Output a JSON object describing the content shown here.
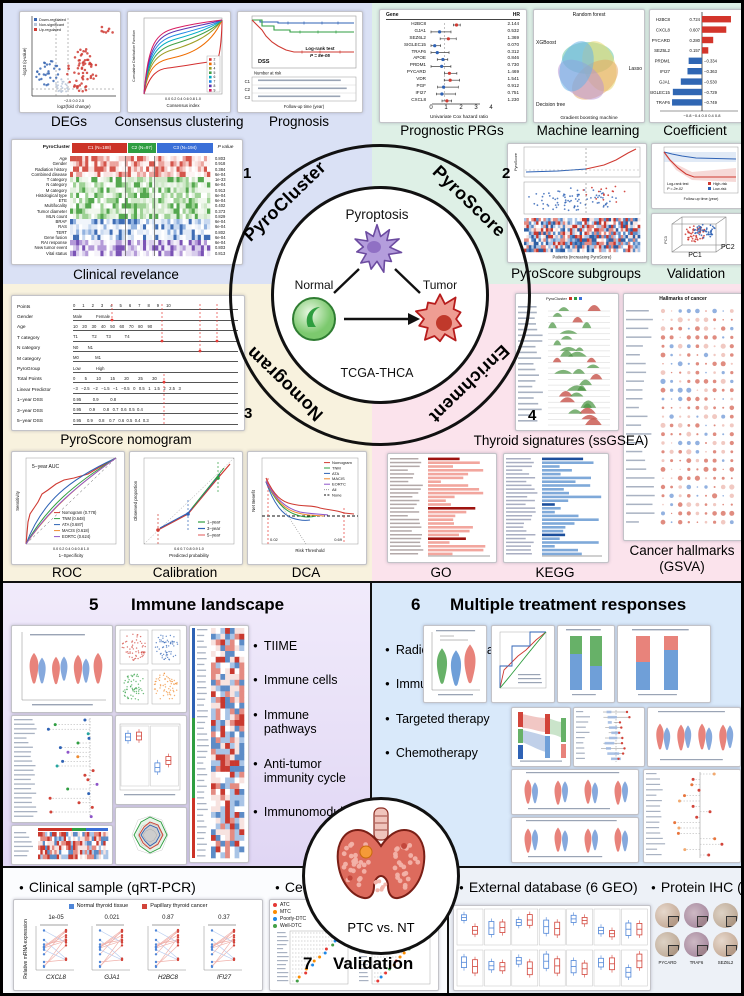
{
  "ring": {
    "s1": "PyroCluster",
    "s2": "PyroScore",
    "s3": "Nomogram",
    "s4": "Enrichment",
    "n1": "1",
    "n2": "2",
    "n3": "3",
    "n4": "4"
  },
  "center": {
    "top": "Pyroptosis",
    "left": "Normal",
    "right": "Tumor",
    "cohort": "TCGA-THCA"
  },
  "s1": {
    "cap_a": "DEGs",
    "cap_b": "Consensus clustering",
    "cap_c": "Prognosis",
    "cap_d": "Clinical revelance",
    "volcano": {
      "legend": [
        "Down-regulated",
        "Non-significant",
        "Up-regulated"
      ],
      "xlabel": "log2(fold change)",
      "ylabel": "-log10 (q-value)",
      "xticks": "−2.5        0.0        2.5"
    },
    "consensus": {
      "xlabel": "Consensus index",
      "ylabel": "Cumulative Distribution Function",
      "xticks": "0.0   0.2   0.4   0.6   0.8   1.0",
      "k": [
        "2",
        "3",
        "4",
        "5",
        "6",
        "7",
        "8",
        "9"
      ]
    },
    "km": {
      "endpoint": "DSS",
      "test": "Log-rank test",
      "p": "P = 8e-05",
      "risk": "Number at risk",
      "xlabel": "Follow-up time (year)",
      "groups": [
        "C1",
        "C2",
        "C3"
      ]
    },
    "clin": {
      "title_row": "PyroCluster",
      "cols": [
        "C1 (N=188)",
        "C2 (N=97)",
        "C3 (N=194)"
      ],
      "pcol": "P value",
      "rows": [
        {
          "label": "Age",
          "p": "0.803"
        },
        {
          "label": "Gender",
          "p": "0.918"
        },
        {
          "label": "Radiation history",
          "p": "0.384"
        },
        {
          "label": "Combined disease",
          "p": "6e-04"
        },
        {
          "label": "T category",
          "p": "1e-33"
        },
        {
          "label": "N category",
          "p": "6e-04"
        },
        {
          "label": "M category",
          "p": "0.913"
        },
        {
          "label": "Histological type",
          "p": "6e-04"
        },
        {
          "label": "ETE",
          "p": "6e-04"
        },
        {
          "label": "Multifocality",
          "p": "0.402"
        },
        {
          "label": "Tumor diameter",
          "p": "0.373"
        },
        {
          "label": "MLN count",
          "p": "0.829"
        },
        {
          "label": "BRAF",
          "p": "6e-04"
        },
        {
          "label": "RAS",
          "p": "6e-04"
        },
        {
          "label": "TERT",
          "p": "0.802"
        },
        {
          "label": "Gene fusion",
          "p": "6e-04"
        },
        {
          "label": "RAI response",
          "p": "6e-04"
        },
        {
          "label": "New tumor event",
          "p": "0.803"
        },
        {
          "label": "Vital status",
          "p": "0.813"
        }
      ]
    }
  },
  "s2": {
    "cap_a": "Prognostic PRGs",
    "cap_b": "Machine learning",
    "cap_c": "Coefficient",
    "cap_d": "PyroScore subgroups",
    "cap_e": "Validation",
    "forest": {
      "col_gene": "Gene",
      "col_hr": "HR",
      "xlabel": "Univariate Cox hazard ratio",
      "xticks": "0       1       2       3       4",
      "genes": [
        "H2BC8",
        "GJA1",
        "SEZ6L2",
        "SIGLEC15",
        "TRAF6",
        "APOE",
        "PRDM1",
        "PYCARD",
        "VDR",
        "PGF",
        "IFI27",
        "CXCL8"
      ],
      "hr": [
        "2.144",
        "0.532",
        "1.369",
        "0.070",
        "0.312",
        "0.846",
        "0.730",
        "1.469",
        "1.541",
        "0.912",
        "0.751",
        "1.230"
      ]
    },
    "venn": {
      "labels": [
        "Random forest",
        "XGBoost",
        "Lasso",
        "Decision tree",
        "Gradient boosting machine"
      ]
    },
    "coef": {
      "genes": [
        "H2BC8",
        "CXCL8",
        "PYCARD",
        "SEZ6L2",
        "PRDM1",
        "IFI27",
        "GJA1",
        "SIGLEC15",
        "TRAF6"
      ],
      "values": [
        0.724,
        0.607,
        0.28,
        0.157,
        -0.334,
        -0.363,
        -0.53,
        -0.729,
        -0.749
      ],
      "labels": [
        "0.724",
        "0.607",
        "0.280",
        "0.157",
        "−0.334",
        "−0.363",
        "−0.530",
        "−0.729",
        "−0.749"
      ],
      "xticks": "−0.8   −0.4    0.0    0.4    0.8"
    },
    "risk": {
      "ylabel": "PyroScore",
      "xlabel": "Patients (increasing PyroScore)"
    },
    "km": {
      "test": "Log-rank test",
      "p": "P = 2e-02",
      "legend": [
        "High-risk",
        "Low-risk"
      ],
      "xlabel": "Follow-up time (year)"
    },
    "pca": {
      "x": "PC1",
      "y": "PC2",
      "z": "PC3"
    }
  },
  "s3": {
    "cap_a": "PyroScore nomogram",
    "cap_roc": "ROC",
    "cap_cal": "Calibration",
    "cap_dca": "DCA",
    "nomogram": {
      "rows": [
        {
          "label": "Points",
          "scale": "0      1      2      3      4      5      6      7      8      9      10"
        },
        {
          "label": "Gender",
          "scale": "Male            Female"
        },
        {
          "label": "Age",
          "scale": "10    20    30    40    50    60    70    80    90"
        },
        {
          "label": "T category",
          "scale": "T1            T2        T3            T4"
        },
        {
          "label": "N category",
          "scale": "N0        N1"
        },
        {
          "label": "M category",
          "scale": "M0              M1"
        },
        {
          "label": "PyroGroup",
          "scale": "Low             High"
        },
        {
          "label": "Total Points",
          "scale": "0        5        10        15        20        25        30"
        },
        {
          "label": "Linear Predictor",
          "scale": "−3   −2.5   −2   −1.5   −1   −0.5   0   0.5   1   1.5   2   2.5   3"
        },
        {
          "label": "1−year DSS",
          "scale": "0.95          0.9          0.8"
        },
        {
          "label": "3−year DSS",
          "scale": "0.95       0.9       0.8   0.7  0.6  0.5  0.4"
        },
        {
          "label": "5−year DSS",
          "scale": "0.95     0.9     0.8    0.7   0.6  0.5  0.4  0.3"
        }
      ]
    },
    "roc": {
      "title": "5−year AUC",
      "xlabel": "1−Specificity",
      "ylabel": "Sensitivity",
      "xticks": "0.0    0.2    0.4    0.6    0.8    1.0",
      "legend": [
        "Nomogram (0.778)",
        "TNM (0.648)",
        "ATA (0.687)",
        "MACIS (0.618)",
        "EORTC (0.624)"
      ]
    },
    "cal": {
      "xlabel": "Predicted probability",
      "ylabel": "Observed proportion",
      "xticks": "0.6      0.7      0.8      0.9      1.0",
      "legend": [
        "1−year",
        "3−year",
        "5−year"
      ]
    },
    "dca": {
      "xlabel": "Risk Threshold",
      "ylabel": "Net Benefit",
      "legend": [
        "Nomogram",
        "TNM",
        "ATA",
        "MACIS",
        "EORTC",
        "All",
        "None"
      ],
      "mark_lo": "0.02",
      "mark_hi": "0.69"
    }
  },
  "s4": {
    "cap_ridge": "Thyroid signatures (ssGSEA)",
    "cap_go": "GO",
    "cap_kegg": "KEGG",
    "cap_hall_1": "Cancer hallmarks",
    "cap_hall_2": "(GSVA)",
    "hall_title": "Hallmarks of cancer",
    "ridge_legend": "PyroCluster"
  },
  "s5": {
    "num": "5",
    "title": "Immune landscape",
    "bullets": [
      "TIIME",
      "Immune cells",
      "Immune pathways",
      "Anti-tumor immunity cycle",
      "Immunomodulators"
    ]
  },
  "s6": {
    "num": "6",
    "title": "Multiple treatment responses",
    "bullets": [
      "Radioiodine therapy",
      "Immunotherapy",
      "Targeted therapy",
      "Chemotherapy"
    ]
  },
  "s7": {
    "num": "7",
    "title": "Validation",
    "vs": "PTC vs. NT",
    "qpcr": {
      "header": "Clinical sample (qRT-PCR)",
      "legend": [
        "Normal thyroid tissue",
        "Papillary thyroid cancer"
      ],
      "ylabel": "Relative mRNA expression",
      "items": [
        {
          "p": "1e-05",
          "gene": "CXCL8"
        },
        {
          "p": "0.021",
          "gene": "GJA1"
        },
        {
          "p": "0.87",
          "gene": "H2BC8"
        },
        {
          "p": "0.37",
          "gene": "IFI27"
        }
      ]
    },
    "ccle": {
      "header": "Cell line  (CCLE)",
      "legend": [
        "ATC",
        "MTC",
        "Poorly-DTC",
        "Well-DTC"
      ]
    },
    "geo": {
      "header": "External database (6 GEO)"
    },
    "ihc": {
      "header": "Protein IHC (HPA)",
      "labels": [
        "PYCARD",
        "TRAF6",
        "SEZ6L2"
      ]
    }
  }
}
